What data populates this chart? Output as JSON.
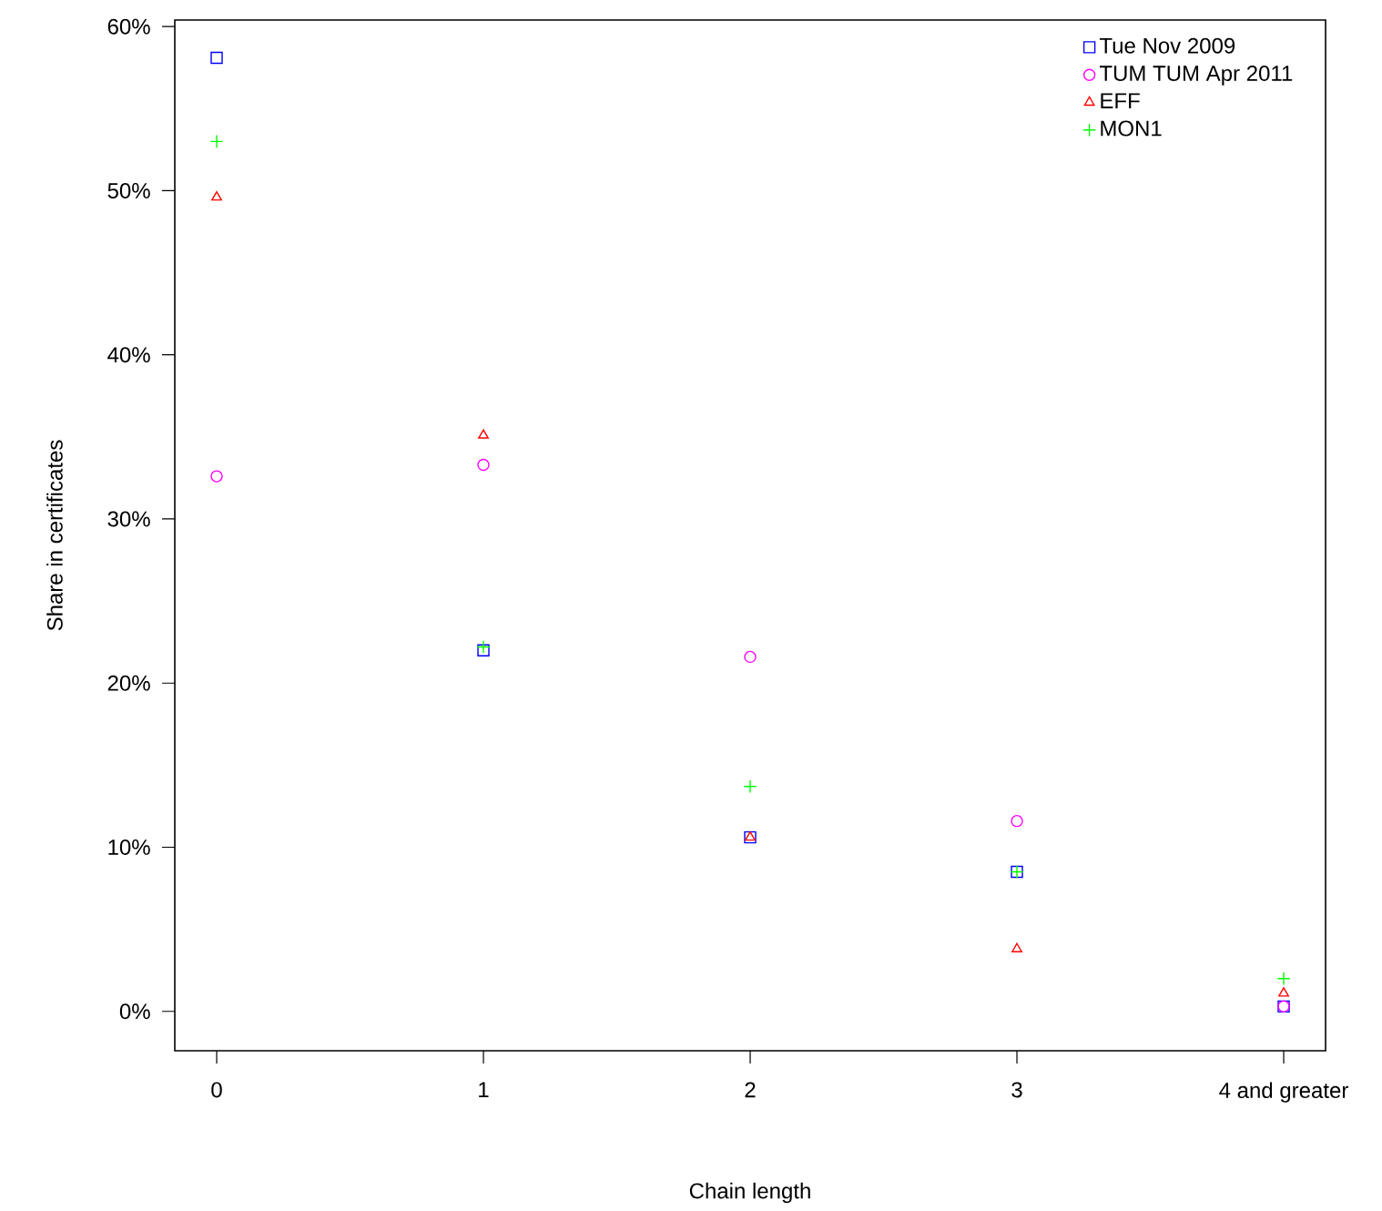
{
  "chart_data": {
    "type": "scatter",
    "xlabel": "Chain length",
    "ylabel": "Share in certificates",
    "categories": [
      "0",
      "1",
      "2",
      "3",
      "4 and greater"
    ],
    "series": [
      {
        "name": "Tue Nov 2009",
        "color": "#0000ff",
        "marker": "square",
        "values": [
          58.1,
          22.0,
          10.6,
          8.5,
          0.3
        ]
      },
      {
        "name": "TUM TUM Apr 2011",
        "color": "#ff00ff",
        "marker": "circle",
        "values": [
          32.6,
          33.3,
          21.6,
          11.6,
          0.3
        ]
      },
      {
        "name": "EFF",
        "color": "#ff0000",
        "marker": "triangle",
        "values": [
          49.6,
          35.1,
          10.6,
          3.8,
          1.1
        ]
      },
      {
        "name": "MON1",
        "color": "#00ff00",
        "marker": "cross",
        "values": [
          53.0,
          22.2,
          13.7,
          8.5,
          2.0
        ]
      }
    ],
    "ylim": [
      -2.4,
      60.4
    ],
    "yticks": [
      {
        "value": 0,
        "label": "0%"
      },
      {
        "value": 10,
        "label": "10%"
      },
      {
        "value": 20,
        "label": "20%"
      },
      {
        "value": 30,
        "label": "30%"
      },
      {
        "value": 40,
        "label": "40%"
      },
      {
        "value": 50,
        "label": "50%"
      },
      {
        "value": 60,
        "label": "60%"
      }
    ],
    "grid": false,
    "legend": "top right"
  }
}
